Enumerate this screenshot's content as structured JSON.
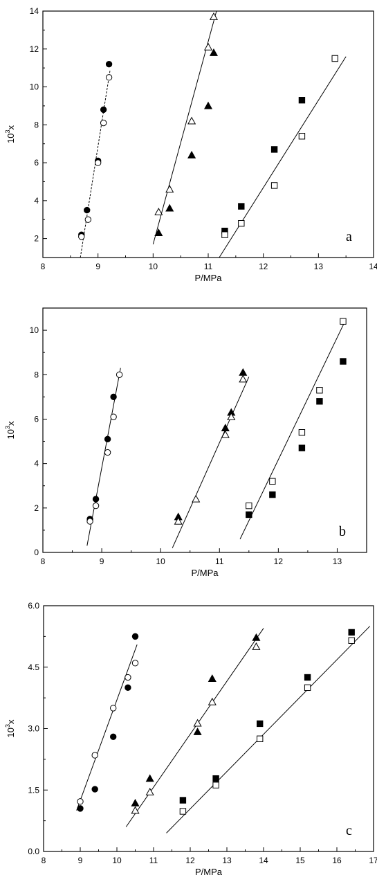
{
  "chart_data": [
    {
      "type": "scatter",
      "label": "a",
      "xlabel": "P/MPa",
      "ylabel_base": "10",
      "ylabel_exp": "3",
      "ylabel_suffix": "x",
      "xlim": [
        8,
        14
      ],
      "ylim": [
        1,
        14
      ],
      "xticks": [
        8,
        9,
        10,
        11,
        12,
        13,
        14
      ],
      "yticks": [
        2,
        4,
        6,
        8,
        10,
        12,
        14
      ],
      "ytick_decimals": 0,
      "series": [
        {
          "marker": "circle-filled",
          "x": [
            8.7,
            8.8,
            9.0,
            9.1,
            9.2
          ],
          "y": [
            2.2,
            3.5,
            6.1,
            8.8,
            11.2
          ]
        },
        {
          "marker": "circle-open",
          "x": [
            8.7,
            8.82,
            9.0,
            9.1,
            9.2
          ],
          "y": [
            2.1,
            3.0,
            6.0,
            8.1,
            10.5
          ]
        },
        {
          "marker": "triangle-filled",
          "x": [
            10.1,
            10.3,
            10.7,
            11.0,
            11.1
          ],
          "y": [
            2.3,
            3.6,
            6.4,
            9.0,
            11.8
          ]
        },
        {
          "marker": "triangle-open",
          "x": [
            10.1,
            10.3,
            10.7,
            11.0,
            11.1
          ],
          "y": [
            3.4,
            4.6,
            8.2,
            12.1,
            13.7
          ]
        },
        {
          "marker": "square-filled",
          "x": [
            11.3,
            11.6,
            12.2,
            12.7,
            13.3
          ],
          "y": [
            2.4,
            3.7,
            6.7,
            9.3,
            11.5
          ]
        },
        {
          "marker": "square-open",
          "x": [
            11.3,
            11.6,
            12.2,
            12.7,
            13.3
          ],
          "y": [
            2.2,
            2.8,
            4.8,
            7.4,
            11.5
          ]
        }
      ],
      "fit_lines": [
        {
          "style": "dashed",
          "x": [
            8.68,
            9.22
          ],
          "y": [
            1.0,
            10.9
          ]
        },
        {
          "style": "solid",
          "x": [
            10.0,
            11.15
          ],
          "y": [
            1.7,
            14.0
          ]
        },
        {
          "style": "solid",
          "x": [
            11.2,
            13.5
          ],
          "y": [
            1.0,
            11.6
          ]
        }
      ]
    },
    {
      "type": "scatter",
      "label": "b",
      "xlabel": "P/MPa",
      "ylabel_base": "10",
      "ylabel_exp": "3",
      "ylabel_suffix": "x",
      "xlim": [
        8,
        13.5
      ],
      "ylim": [
        0,
        11
      ],
      "xticks": [
        8,
        9,
        10,
        11,
        12,
        13
      ],
      "yticks": [
        0,
        2,
        4,
        6,
        8,
        10
      ],
      "ytick_decimals": 0,
      "series": [
        {
          "marker": "circle-filled",
          "x": [
            8.8,
            8.9,
            9.1,
            9.2
          ],
          "y": [
            1.5,
            2.4,
            5.1,
            7.0
          ]
        },
        {
          "marker": "circle-open",
          "x": [
            8.8,
            8.9,
            9.1,
            9.2,
            9.3
          ],
          "y": [
            1.4,
            2.1,
            4.5,
            6.1,
            8.0
          ]
        },
        {
          "marker": "triangle-filled",
          "x": [
            10.3,
            11.1,
            11.2,
            11.4
          ],
          "y": [
            1.6,
            5.6,
            6.3,
            8.1
          ]
        },
        {
          "marker": "triangle-open",
          "x": [
            10.3,
            10.6,
            11.1,
            11.2,
            11.4
          ],
          "y": [
            1.4,
            2.4,
            5.3,
            6.1,
            7.8
          ]
        },
        {
          "marker": "square-filled",
          "x": [
            11.5,
            11.9,
            12.4,
            12.7,
            13.1
          ],
          "y": [
            1.7,
            2.6,
            4.7,
            6.8,
            8.6
          ]
        },
        {
          "marker": "square-open",
          "x": [
            11.5,
            11.9,
            12.4,
            12.7,
            13.1
          ],
          "y": [
            2.1,
            3.2,
            5.4,
            7.3,
            10.4
          ]
        }
      ],
      "fit_lines": [
        {
          "style": "solid",
          "x": [
            8.75,
            9.32
          ],
          "y": [
            0.3,
            8.3
          ]
        },
        {
          "style": "solid",
          "x": [
            10.2,
            11.5
          ],
          "y": [
            0.2,
            7.9
          ]
        },
        {
          "style": "solid",
          "x": [
            11.35,
            13.15
          ],
          "y": [
            0.6,
            10.5
          ]
        }
      ]
    },
    {
      "type": "scatter",
      "label": "c",
      "xlabel": "P/MPa",
      "ylabel_base": "10",
      "ylabel_exp": "3",
      "ylabel_suffix": "x",
      "xlim": [
        8,
        17
      ],
      "ylim": [
        0,
        6
      ],
      "xticks": [
        8,
        9,
        10,
        11,
        12,
        13,
        14,
        15,
        16,
        17
      ],
      "yticks": [
        0,
        1.5,
        3,
        4.5,
        6
      ],
      "ytick_decimals": 1,
      "series": [
        {
          "marker": "circle-filled",
          "x": [
            9.0,
            9.4,
            9.9,
            10.3,
            10.5
          ],
          "y": [
            1.05,
            1.52,
            2.8,
            4.0,
            5.25
          ]
        },
        {
          "marker": "circle-open",
          "x": [
            9.0,
            9.4,
            9.9,
            10.3,
            10.5
          ],
          "y": [
            1.22,
            2.35,
            3.5,
            4.25,
            4.6
          ]
        },
        {
          "marker": "triangle-filled",
          "x": [
            10.5,
            10.9,
            12.2,
            12.6,
            13.8
          ],
          "y": [
            1.18,
            1.78,
            2.92,
            4.22,
            5.22
          ]
        },
        {
          "marker": "triangle-open",
          "x": [
            10.5,
            10.9,
            12.2,
            12.6,
            13.8
          ],
          "y": [
            1.0,
            1.45,
            3.13,
            3.65,
            5.0
          ]
        },
        {
          "marker": "square-filled",
          "x": [
            11.8,
            12.7,
            13.9,
            15.2,
            16.4
          ],
          "y": [
            1.25,
            1.78,
            3.12,
            4.25,
            5.35
          ]
        },
        {
          "marker": "square-open",
          "x": [
            11.8,
            12.7,
            13.9,
            15.2,
            16.4
          ],
          "y": [
            0.98,
            1.62,
            2.75,
            4.0,
            5.15
          ]
        }
      ],
      "fit_lines": [
        {
          "style": "solid",
          "x": [
            8.9,
            10.55
          ],
          "y": [
            1.0,
            5.05
          ]
        },
        {
          "style": "solid",
          "x": [
            10.25,
            14.0
          ],
          "y": [
            0.6,
            5.45
          ]
        },
        {
          "style": "solid",
          "x": [
            11.35,
            16.9
          ],
          "y": [
            0.45,
            5.5
          ]
        }
      ]
    }
  ]
}
